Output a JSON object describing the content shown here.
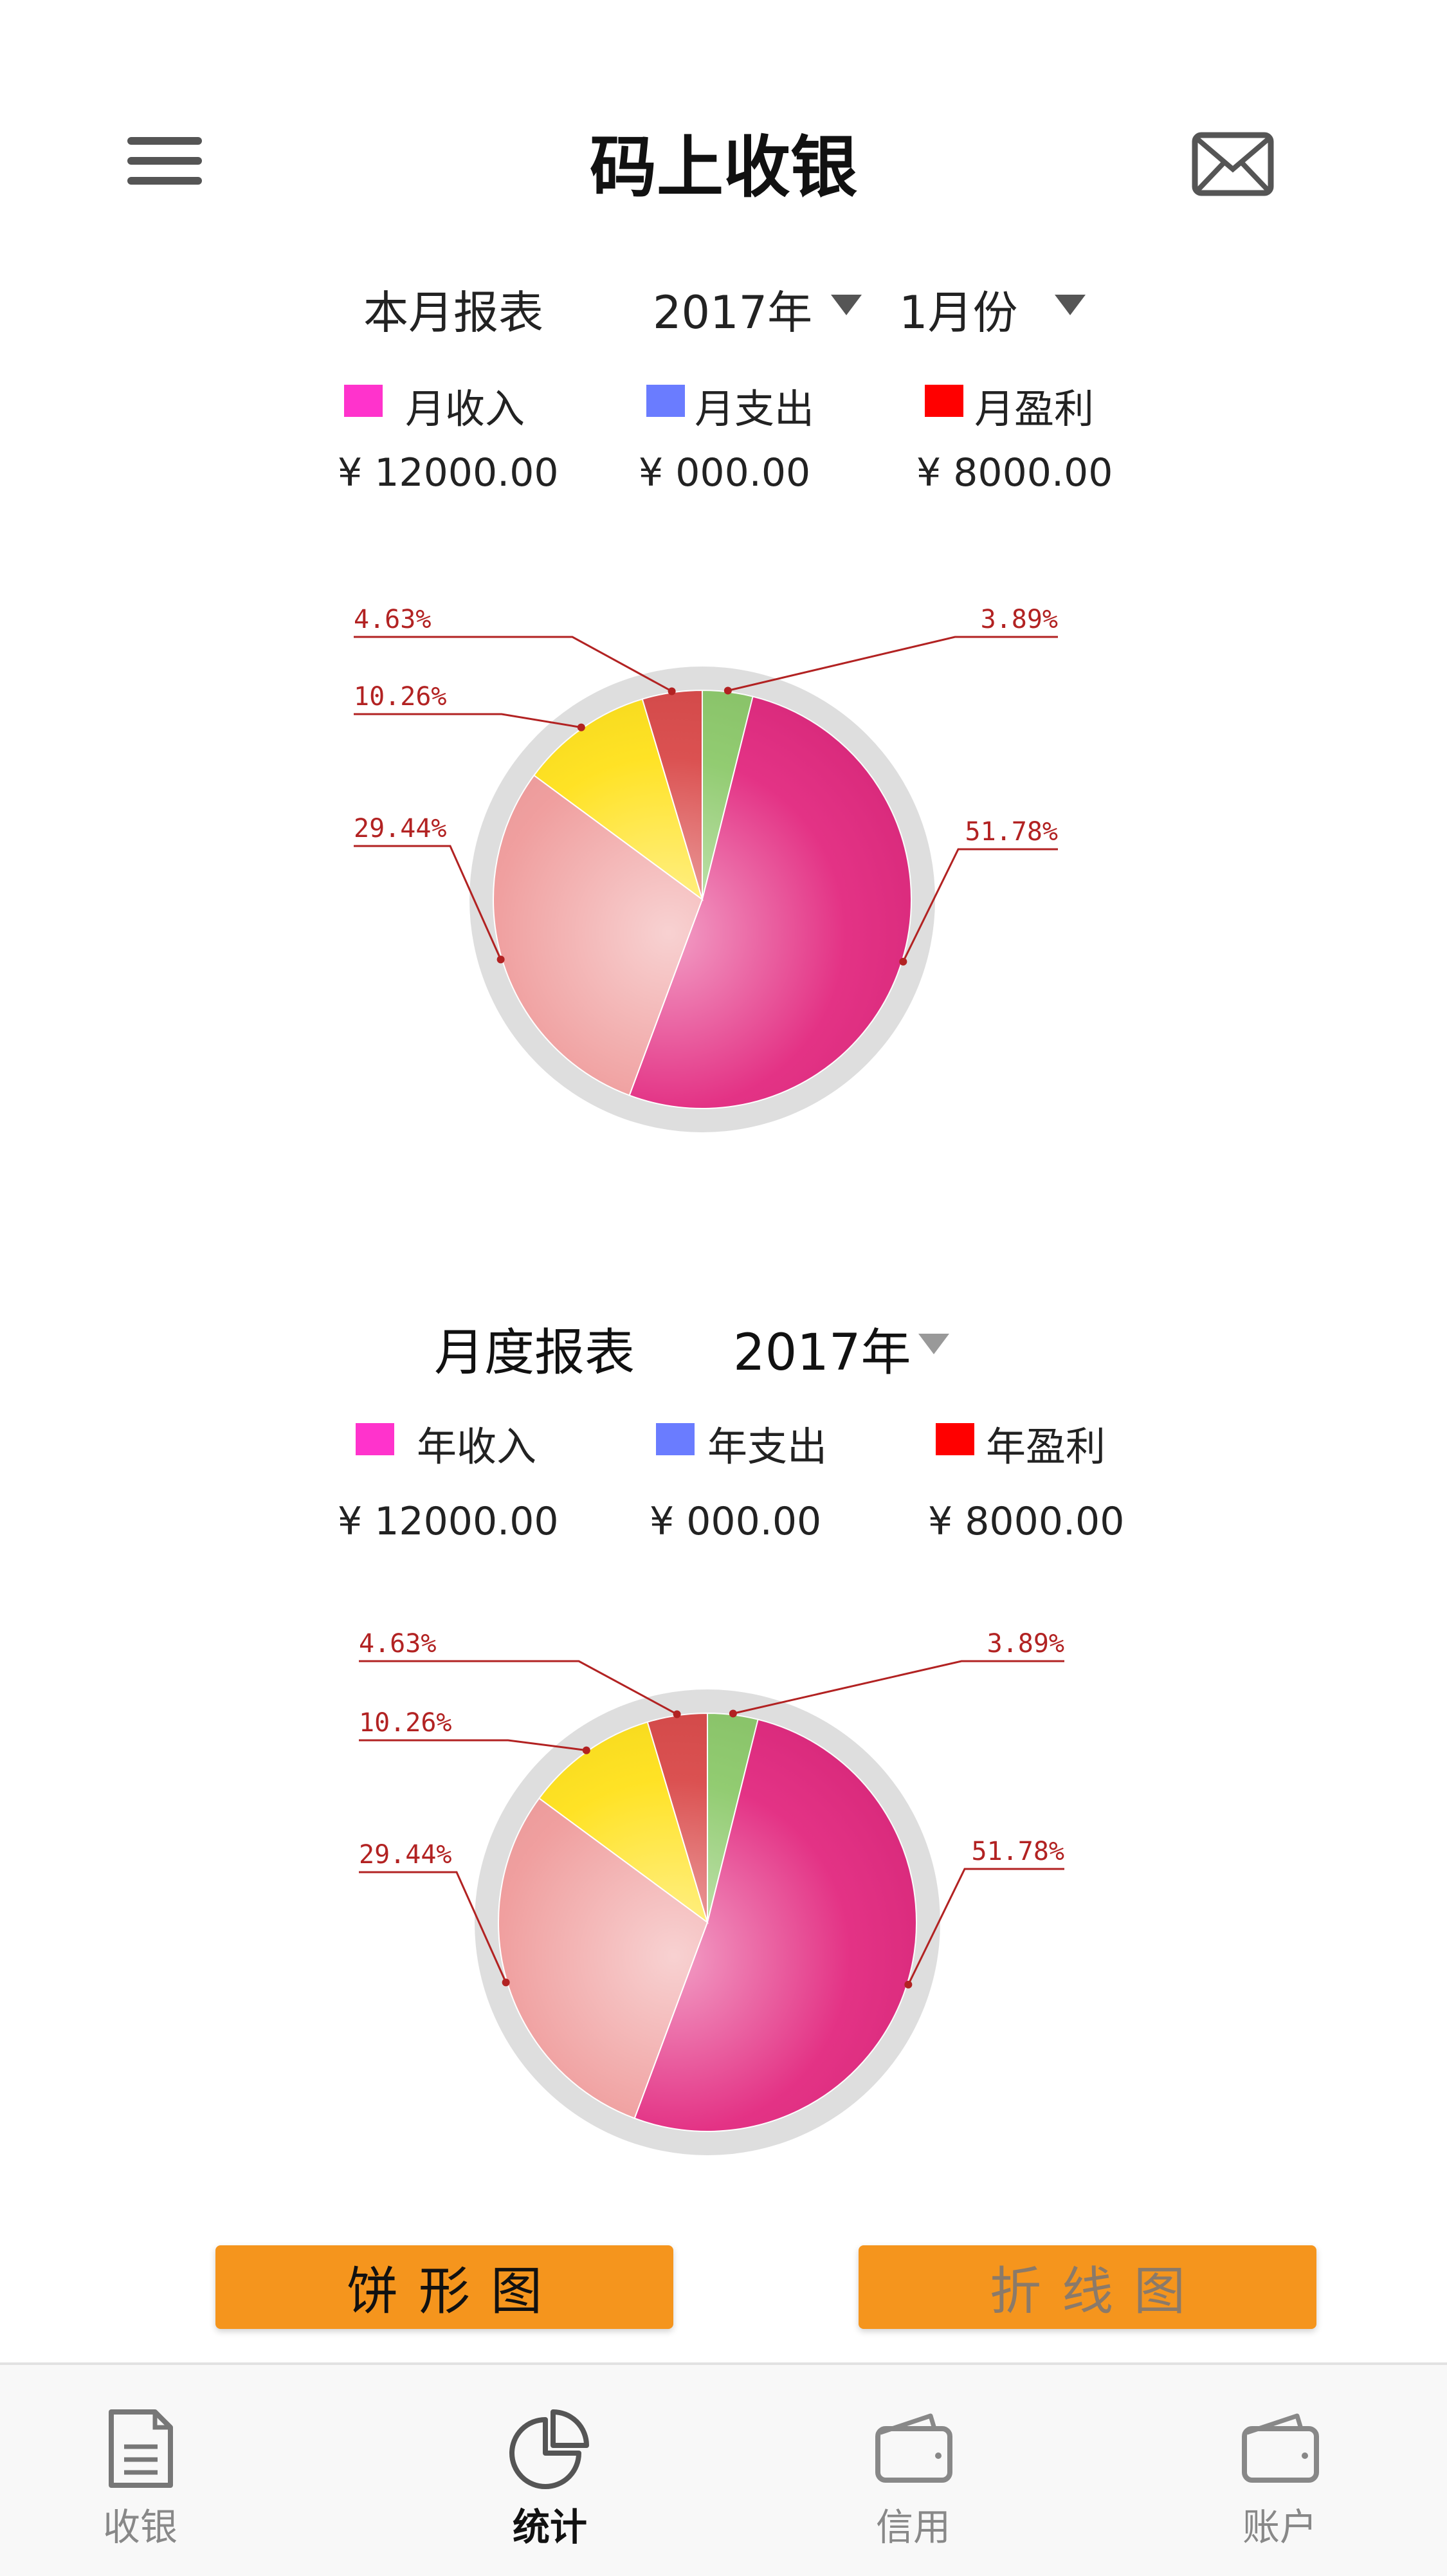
{
  "header": {
    "title": "码上收银",
    "menu_icon": "hamburger-menu-icon",
    "mail_icon": "envelope-icon"
  },
  "monthly": {
    "title": "本月报表",
    "year": "2017年",
    "month": "1月份",
    "legend": [
      {
        "label": "月收入",
        "color": "#ff33cc"
      },
      {
        "label": "月支出",
        "color": "#6a7cff"
      },
      {
        "label": "月盈利",
        "color": "#ff0000"
      }
    ],
    "amounts": [
      "¥ 12000.00",
      "¥ 000.00",
      "¥ 8000.00"
    ]
  },
  "yearly": {
    "title": "月度报表",
    "year": "2017年",
    "legend": [
      {
        "label": "年收入",
        "color": "#ff33cc"
      },
      {
        "label": "年支出",
        "color": "#6a7cff"
      },
      {
        "label": "年盈利",
        "color": "#ff0000"
      }
    ],
    "amounts": [
      "¥ 12000.00",
      "¥ 000.00",
      "¥ 8000.00"
    ]
  },
  "chart_data": [
    {
      "type": "pie",
      "labels": [
        "3.89%",
        "51.78%",
        "29.44%",
        "10.26%",
        "4.63%"
      ],
      "values": [
        3.89,
        51.78,
        29.44,
        10.26,
        4.63
      ],
      "colors": [
        "#8cc96a",
        "#e2287f",
        "#ef9a9a",
        "#ffe11a",
        "#d94848"
      ]
    },
    {
      "type": "pie",
      "labels": [
        "3.89%",
        "51.78%",
        "29.44%",
        "10.26%",
        "4.63%"
      ],
      "values": [
        3.89,
        51.78,
        29.44,
        10.26,
        4.63
      ],
      "colors": [
        "#8cc96a",
        "#e2287f",
        "#ef9a9a",
        "#ffe11a",
        "#d94848"
      ]
    }
  ],
  "buttons": {
    "pie": "饼形图",
    "line": "折线图"
  },
  "tabs": [
    {
      "label": "收银",
      "icon": "document-icon"
    },
    {
      "label": "统计",
      "icon": "pie-chart-icon"
    },
    {
      "label": "信用",
      "icon": "wallet-icon"
    },
    {
      "label": "账户",
      "icon": "wallet-icon"
    }
  ]
}
